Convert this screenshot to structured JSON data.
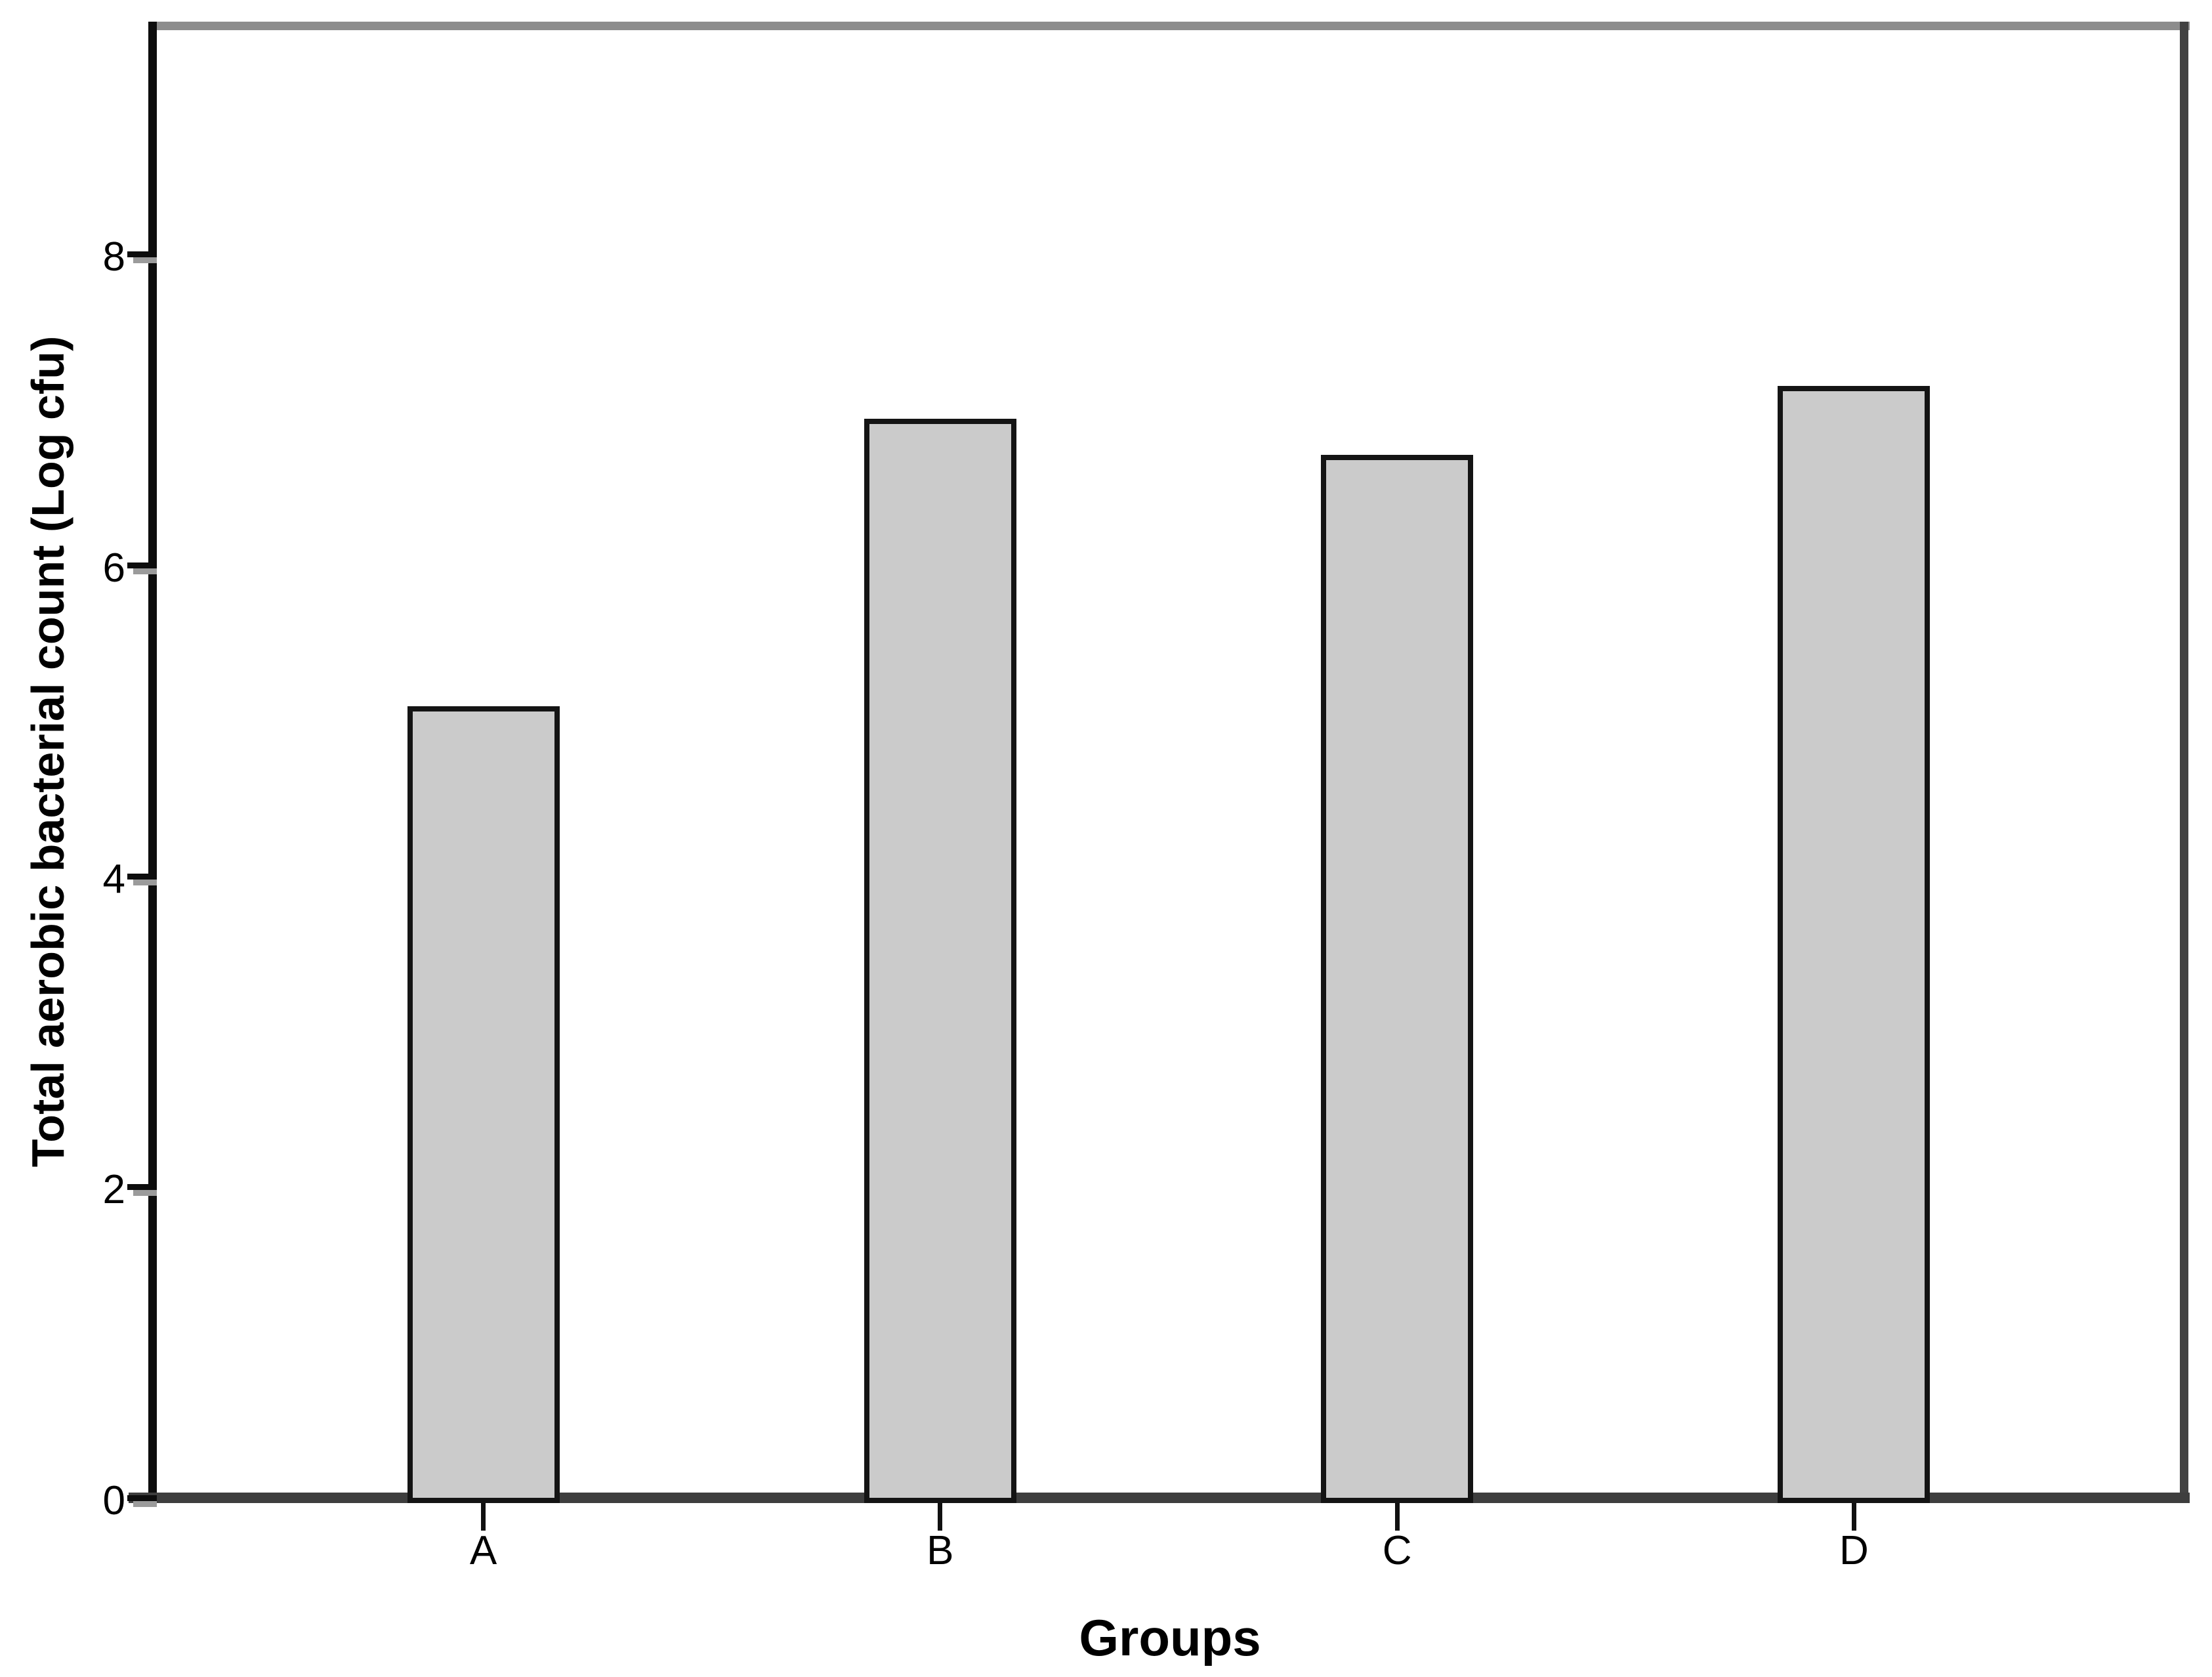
{
  "chart_data": {
    "type": "bar",
    "title": "",
    "categories": [
      "A",
      "B",
      "C",
      "D"
    ],
    "values": [
      5.09,
      6.94,
      6.71,
      7.15
    ],
    "xlabel": "Groups",
    "ylabel": "Total aerobic bacterial count (Log cfu)",
    "yticks": [
      0,
      2,
      4,
      6,
      8
    ],
    "ylim": [
      0,
      9.5
    ],
    "grid": false,
    "legend": "none",
    "colors": {
      "bar_fill": "#cbcbcb",
      "bar_border": "#141414",
      "axis_line": "#0d0d0d",
      "baseline": "#3e3e3e",
      "frame_top": "#8c8c8c",
      "frame_right": "#424242",
      "text": "#000000",
      "background": "#ffffff"
    }
  }
}
